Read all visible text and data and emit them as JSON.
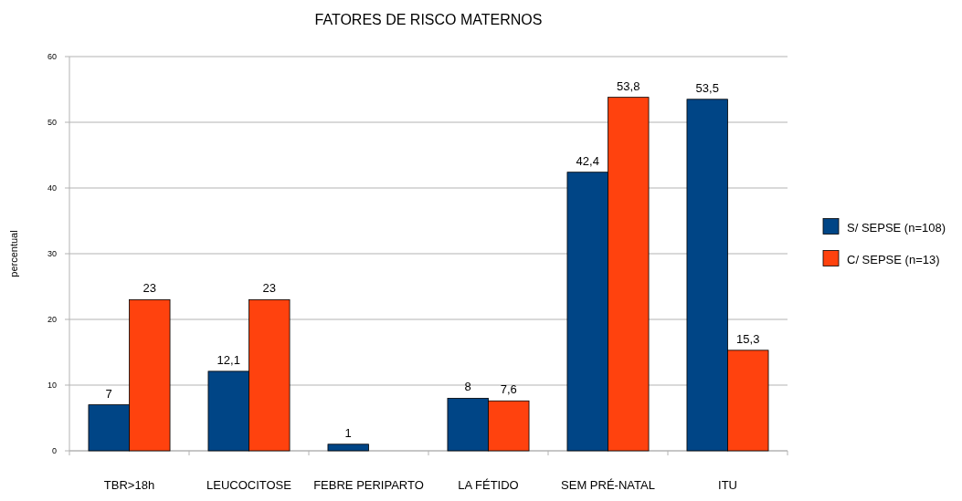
{
  "chart_data": {
    "type": "bar",
    "title": "FATORES DE RISCO MATERNOS",
    "ylabel": "percentual",
    "categories": [
      "TBR>18h",
      "LEUCOCITOSE",
      "FEBRE PERIPARTO",
      "LA FÉTIDO",
      "SEM PRÉ-NATAL",
      "ITU"
    ],
    "series": [
      {
        "name": "S/ SEPSE (n=108)",
        "color": "#004586",
        "values": [
          7,
          12.1,
          1,
          8,
          42.4,
          53.5
        ],
        "value_labels": [
          "7",
          "12,1",
          "1",
          "8",
          "42,4",
          "53,5"
        ]
      },
      {
        "name": "C/ SEPSE (n=13)",
        "color": "#ff420e",
        "values": [
          23,
          23,
          null,
          7.6,
          53.8,
          15.3
        ],
        "value_labels": [
          "23",
          "23",
          null,
          "7,6",
          "53,8",
          "15,3"
        ]
      }
    ],
    "ylim": [
      0,
      60
    ],
    "yticks": [
      0,
      10,
      20,
      30,
      40,
      50,
      60
    ],
    "grid": "y",
    "legend": "right"
  }
}
